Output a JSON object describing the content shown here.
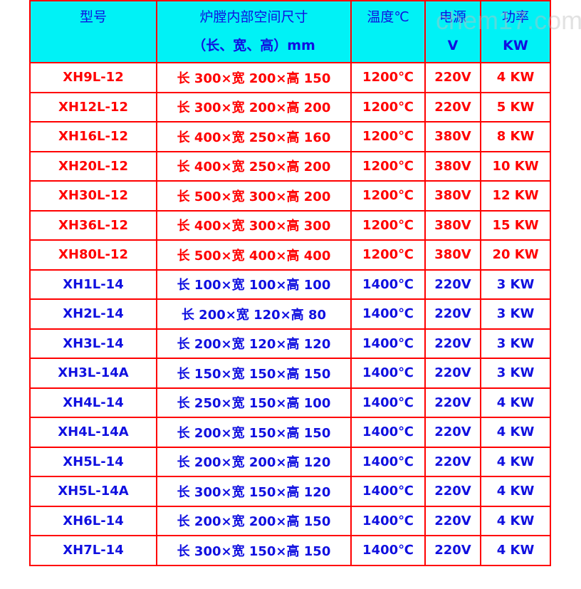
{
  "header": {
    "model": "型号",
    "size_line1": "炉膛内部空间尺寸",
    "size_line2": "（长、宽、高）mm",
    "temp": "温度℃",
    "power_line1": "电源",
    "power_line2": "V",
    "watt_line1": "功率",
    "watt_line2": "KW"
  },
  "watermark": "chem17.com",
  "colors": {
    "header_bg": "#00f2f6",
    "border": "#ff0000",
    "red_text": "#ff0000",
    "blue_text": "#1010e0"
  },
  "rows": [
    {
      "model": "XH9L-12",
      "size": "长 300×宽 200×高 150",
      "temp": "1200℃",
      "voltage": "220V",
      "power": "4 KW",
      "color": "red"
    },
    {
      "model": "XH12L-12",
      "size": "长 300×宽 200×高 200",
      "temp": "1200℃",
      "voltage": "220V",
      "power": "5 KW",
      "color": "red"
    },
    {
      "model": "XH16L-12",
      "size": "长 400×宽 250×高 160",
      "temp": "1200℃",
      "voltage": "380V",
      "power": "8 KW",
      "color": "red"
    },
    {
      "model": "XH20L-12",
      "size": "长 400×宽 250×高 200",
      "temp": "1200℃",
      "voltage": "380V",
      "power": "10 KW",
      "color": "red"
    },
    {
      "model": "XH30L-12",
      "size": "长 500×宽 300×高 200",
      "temp": "1200℃",
      "voltage": "380V",
      "power": "12 KW",
      "color": "red"
    },
    {
      "model": "XH36L-12",
      "size": "长 400×宽 300×高 300",
      "temp": "1200℃",
      "voltage": "380V",
      "power": "15 KW",
      "color": "red"
    },
    {
      "model": "XH80L-12",
      "size": "长 500×宽 400×高 400",
      "temp": "1200℃",
      "voltage": "380V",
      "power": "20 KW",
      "color": "red"
    },
    {
      "model": "XH1L-14",
      "size": "长 100×宽 100×高 100",
      "temp": "1400℃",
      "voltage": "220V",
      "power": "3 KW",
      "color": "blue"
    },
    {
      "model": "XH2L-14",
      "size": "长 200×宽 120×高 80",
      "temp": "1400℃",
      "voltage": "220V",
      "power": "3 KW",
      "color": "blue"
    },
    {
      "model": "XH3L-14",
      "size": "长 200×宽 120×高 120",
      "temp": "1400℃",
      "voltage": "220V",
      "power": "3 KW",
      "color": "blue"
    },
    {
      "model": "XH3L-14A",
      "size": "长 150×宽 150×高 150",
      "temp": "1400℃",
      "voltage": "220V",
      "power": "3 KW",
      "color": "blue"
    },
    {
      "model": "XH4L-14",
      "size": "长 250×宽 150×高 100",
      "temp": "1400℃",
      "voltage": "220V",
      "power": "4 KW",
      "color": "blue"
    },
    {
      "model": "XH4L-14A",
      "size": "长 200×宽 150×高 150",
      "temp": "1400℃",
      "voltage": "220V",
      "power": "4 KW",
      "color": "blue"
    },
    {
      "model": "XH5L-14",
      "size": "长 200×宽 200×高 120",
      "temp": "1400℃",
      "voltage": "220V",
      "power": "4 KW",
      "color": "blue"
    },
    {
      "model": "XH5L-14A",
      "size": "长 300×宽 150×高 120",
      "temp": "1400℃",
      "voltage": "220V",
      "power": "4 KW",
      "color": "blue"
    },
    {
      "model": "XH6L-14",
      "size": "长 200×宽 200×高 150",
      "temp": "1400℃",
      "voltage": "220V",
      "power": "4 KW",
      "color": "blue"
    },
    {
      "model": "XH7L-14",
      "size": "长 300×宽 150×高 150",
      "temp": "1400℃",
      "voltage": "220V",
      "power": "4 KW",
      "color": "blue"
    }
  ]
}
